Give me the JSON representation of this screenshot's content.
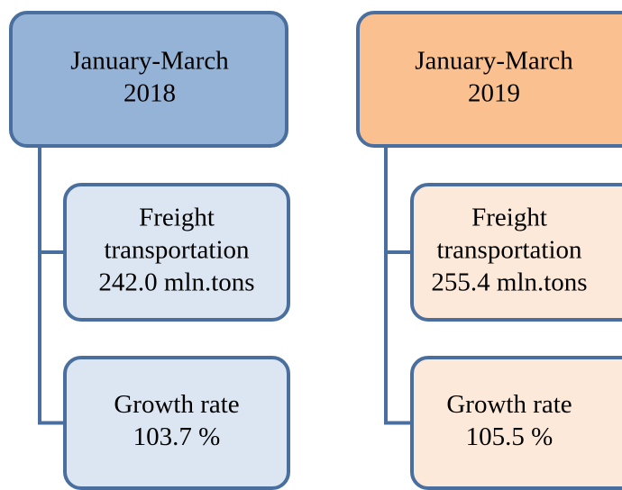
{
  "columns": [
    {
      "header": [
        "January-March",
        "2018"
      ],
      "items": [
        {
          "lines": [
            "Freight",
            "transportation",
            "242.0 mln.tons"
          ]
        },
        {
          "lines": [
            "Growth rate",
            "103.7 %"
          ]
        }
      ]
    },
    {
      "header": [
        "January-March",
        "2019"
      ],
      "items": [
        {
          "lines": [
            "Freight",
            "transportation",
            "255.4 mln.tons"
          ]
        },
        {
          "lines": [
            "Growth rate",
            "105.5 %"
          ]
        }
      ]
    }
  ]
}
